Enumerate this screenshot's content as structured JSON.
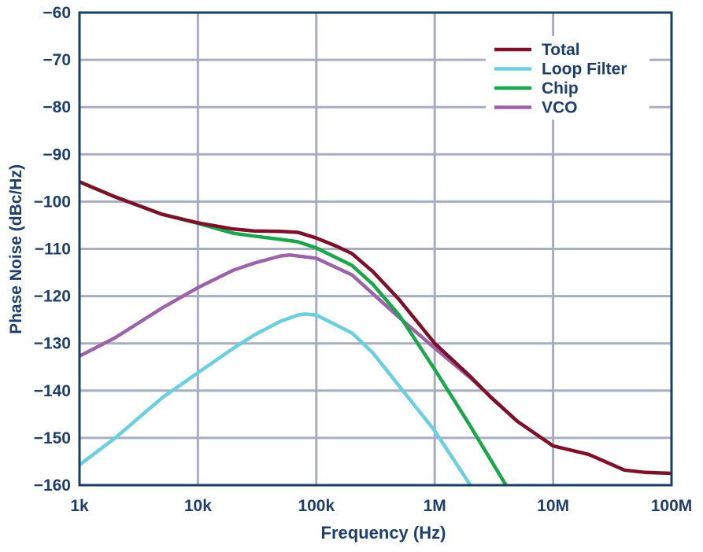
{
  "chart_data": {
    "type": "line",
    "title": "",
    "xlabel": "Frequency (Hz)",
    "ylabel": "Phase Noise (dBc/Hz)",
    "x_scale": "log",
    "xlim": [
      1000,
      100000000
    ],
    "ylim": [
      -160,
      -60
    ],
    "x_ticks": [
      1000,
      10000,
      100000,
      1000000,
      10000000,
      100000000
    ],
    "x_tick_labels": [
      "1k",
      "10k",
      "100k",
      "1M",
      "10M",
      "100M"
    ],
    "y_ticks": [
      -60,
      -70,
      -80,
      -90,
      -100,
      -110,
      -120,
      -130,
      -140,
      -150,
      -160
    ],
    "y_tick_labels": [
      "−60",
      "−70",
      "−80",
      "−90",
      "−100",
      "−110",
      "−120",
      "−130",
      "−140",
      "−150",
      "−160"
    ],
    "grid": true,
    "legend_position": "top-right",
    "series": [
      {
        "name": "Total",
        "color": "#7d1129",
        "x": [
          1000,
          2000,
          5000,
          10000,
          20000,
          30000,
          50000,
          70000,
          100000,
          150000,
          200000,
          300000,
          500000,
          1000000,
          2000000,
          3000000,
          5000000,
          10000000,
          20000000,
          40000000,
          60000000,
          100000000
        ],
        "y": [
          -95.8,
          -99,
          -102.7,
          -104.5,
          -105.8,
          -106.2,
          -106.3,
          -106.5,
          -107.7,
          -109.5,
          -111,
          -114.8,
          -120.7,
          -130,
          -137,
          -141.5,
          -146.5,
          -151.7,
          -153.5,
          -156.8,
          -157.3,
          -157.5
        ]
      },
      {
        "name": "Loop Filter",
        "color": "#6ccfe1",
        "x": [
          1000,
          2000,
          5000,
          10000,
          20000,
          30000,
          50000,
          70000,
          80000,
          100000,
          200000,
          300000,
          500000,
          1000000,
          2000000
        ],
        "y": [
          -155.7,
          -150,
          -141.5,
          -136.2,
          -131,
          -128.2,
          -125.3,
          -124,
          -123.8,
          -124,
          -127.8,
          -132,
          -139,
          -148.5,
          -160
        ]
      },
      {
        "name": "Chip",
        "color": "#1ba64b",
        "x": [
          1000,
          2000,
          5000,
          10000,
          20000,
          30000,
          50000,
          70000,
          100000,
          200000,
          300000,
          500000,
          1000000,
          2000000,
          4000000
        ],
        "y": [
          -95.8,
          -99,
          -102.7,
          -104.6,
          -106.7,
          -107.3,
          -108,
          -108.5,
          -109.8,
          -113.5,
          -117.5,
          -124,
          -135.5,
          -147.5,
          -160
        ]
      },
      {
        "name": "VCO",
        "color": "#9b63a8",
        "x": [
          1000,
          2000,
          5000,
          10000,
          20000,
          30000,
          50000,
          60000,
          100000,
          200000,
          300000,
          500000,
          1000000,
          2000000,
          5000000
        ],
        "y": [
          -132.7,
          -128.8,
          -122.5,
          -118.2,
          -114.5,
          -113,
          -111.5,
          -111.3,
          -112,
          -115.5,
          -119.5,
          -124.5,
          -131,
          -137.3,
          -146.5
        ]
      }
    ]
  }
}
